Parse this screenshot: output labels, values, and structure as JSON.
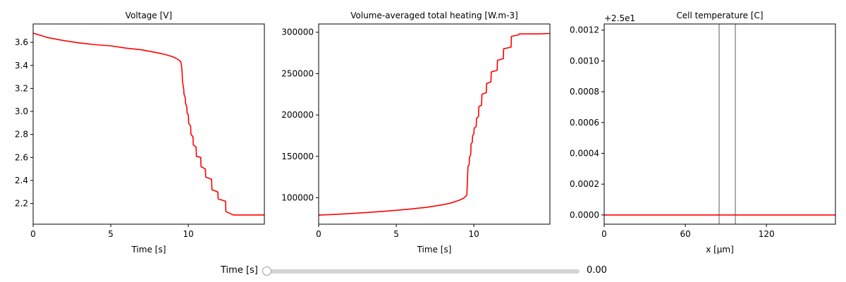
{
  "chart_data": [
    {
      "type": "line",
      "title": "Voltage [V]",
      "xlabel": "Time [s]",
      "ylabel": "",
      "xlim": [
        0,
        14.9
      ],
      "ylim": [
        2.02,
        3.76
      ],
      "xticks": [
        0,
        5,
        10
      ],
      "yticks": [
        2.2,
        2.4,
        2.6,
        2.8,
        3.0,
        3.2,
        3.4,
        3.6
      ],
      "ytick_labels": [
        "2.2",
        "2.4",
        "2.6",
        "2.8",
        "3.0",
        "3.2",
        "3.4",
        "3.6"
      ],
      "line_color": "#ff0000",
      "series": [
        {
          "x": [
            0,
            1,
            2,
            3,
            4,
            5,
            6,
            7,
            8,
            8.5,
            9,
            9.3,
            9.5,
            9.55,
            9.6,
            9.62,
            9.7,
            9.72,
            9.8,
            9.82,
            9.9,
            9.92,
            10.0,
            10.02,
            10.15,
            10.17,
            10.3,
            10.32,
            10.5,
            10.52,
            10.8,
            10.82,
            11.1,
            11.12,
            11.5,
            11.52,
            11.9,
            11.92,
            12.4,
            12.42,
            12.9,
            12.92,
            13.5,
            13.52,
            14.2,
            14.22,
            14.9
          ],
          "y": [
            3.68,
            3.64,
            3.615,
            3.595,
            3.58,
            3.57,
            3.55,
            3.535,
            3.51,
            3.495,
            3.475,
            3.455,
            3.435,
            3.41,
            3.34,
            3.26,
            3.2,
            3.15,
            3.12,
            3.07,
            3.04,
            2.99,
            2.97,
            2.9,
            2.87,
            2.8,
            2.78,
            2.71,
            2.69,
            2.61,
            2.6,
            2.52,
            2.5,
            2.43,
            2.41,
            2.32,
            2.3,
            2.24,
            2.22,
            2.13,
            2.1,
            2.1,
            2.1,
            2.1,
            2.1,
            2.1,
            2.1
          ]
        }
      ]
    },
    {
      "type": "line",
      "title": "Volume-averaged total heating [W.m-3]",
      "xlabel": "Time [s]",
      "ylabel": "",
      "xlim": [
        0,
        14.9
      ],
      "ylim": [
        68000,
        310000
      ],
      "xticks": [
        0,
        5,
        10
      ],
      "yticks": [
        100000,
        150000,
        200000,
        250000,
        300000
      ],
      "ytick_labels": [
        "100000",
        "150000",
        "200000",
        "250000",
        "300000"
      ],
      "line_color": "#ff0000",
      "series": [
        {
          "x": [
            0,
            1,
            2,
            3,
            4,
            5,
            6,
            7,
            8,
            8.5,
            9,
            9.3,
            9.5,
            9.55,
            9.6,
            9.62,
            9.7,
            9.72,
            9.8,
            9.82,
            9.9,
            9.92,
            10.0,
            10.02,
            10.15,
            10.17,
            10.3,
            10.32,
            10.5,
            10.52,
            10.8,
            10.82,
            11.1,
            11.12,
            11.5,
            11.52,
            11.9,
            11.92,
            12.4,
            12.42,
            12.9,
            12.92,
            13.5,
            13.52,
            14.2,
            14.22,
            14.9
          ],
          "y": [
            79000,
            79800,
            80800,
            82000,
            83300,
            84800,
            86500,
            88500,
            91500,
            93500,
            96500,
            99000,
            102000,
            104000,
            127000,
            138000,
            140000,
            149000,
            152000,
            165000,
            167000,
            175000,
            177000,
            184000,
            186000,
            196000,
            198000,
            210000,
            212000,
            225000,
            227000,
            238000,
            240000,
            252000,
            254000,
            266000,
            268000,
            280000,
            282000,
            295000,
            297000,
            298000,
            298000,
            298000,
            298000,
            298000,
            298500
          ]
        }
      ]
    },
    {
      "type": "line",
      "title": "Cell temperature [C]",
      "xlabel": "x [μm]",
      "ylabel": "",
      "offset_text": "+2.5e1",
      "xlim": [
        0,
        171
      ],
      "ylim": [
        -6e-05,
        0.00124
      ],
      "xticks": [
        0,
        60,
        120
      ],
      "yticks": [
        0.0,
        0.0002,
        0.0004,
        0.0006,
        0.0008,
        0.001,
        0.0012
      ],
      "ytick_labels": [
        "0.0000",
        "0.0002",
        "0.0004",
        "0.0006",
        "0.0008",
        "0.0010",
        "0.0012"
      ],
      "vlines": [
        85,
        97
      ],
      "vline_color": "#808080",
      "line_color": "#ff0000",
      "series": [
        {
          "x": [
            0,
            171
          ],
          "y": [
            0,
            0
          ]
        }
      ]
    }
  ],
  "slider": {
    "label": "Time [s]",
    "value": "0.00",
    "position_fraction": 0.0
  }
}
